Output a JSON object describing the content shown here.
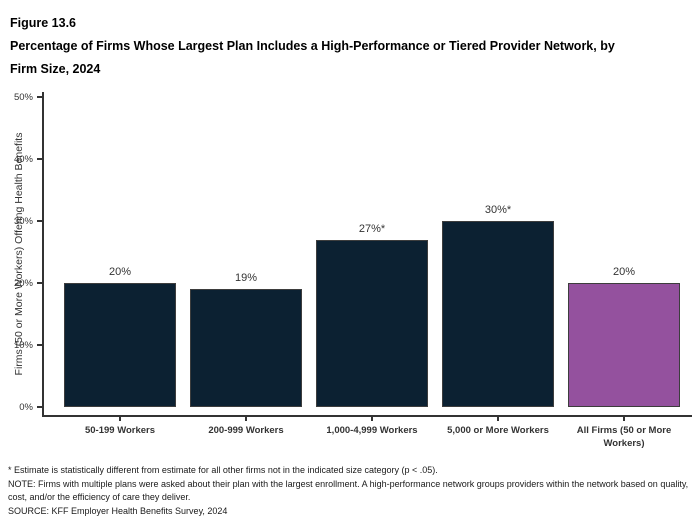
{
  "figure": {
    "number": "Figure 13.6",
    "title": "Percentage of Firms Whose Largest Plan Includes a High-Performance or Tiered Provider Network, by Firm Size, 2024"
  },
  "chart_data": {
    "type": "bar",
    "categories": [
      "50-199 Workers",
      "200-999 Workers",
      "1,000-4,999 Workers",
      "5,000 or More Workers",
      "All Firms (50 or More Workers)"
    ],
    "values": [
      20,
      19,
      27,
      30,
      20
    ],
    "value_labels": [
      "20%",
      "19%",
      "27%*",
      "30%*",
      "20%"
    ],
    "bar_colors": [
      "#0C2132",
      "#0C2132",
      "#0C2132",
      "#0C2132",
      "#94519E"
    ],
    "title": "Percentage of Firms Whose Largest Plan Includes a High-Performance or Tiered Provider Network, by Firm Size, 2024",
    "xlabel": "",
    "ylabel": "Firms (50 or More Workers) Offering Health Benefits",
    "ylim": [
      0,
      50
    ],
    "yticks": [
      "0%",
      "10%",
      "20%",
      "30%",
      "40%",
      "50%"
    ],
    "grid": false,
    "legend": "none"
  },
  "footnotes": {
    "star": "* Estimate is statistically different from estimate for all other firms not in the indicated size category (p < .05).",
    "note": "NOTE: Firms with multiple plans were asked about their plan with the largest enrollment.  A high-performance network groups providers within the network based on quality, cost, and/or the efficiency of care they deliver.",
    "source": "SOURCE: KFF Employer Health Benefits Survey, 2024"
  },
  "colors": {
    "bar_primary": "#0C2132",
    "bar_highlight": "#94519E",
    "axis": "#333333",
    "text": "#1a1a1a"
  }
}
